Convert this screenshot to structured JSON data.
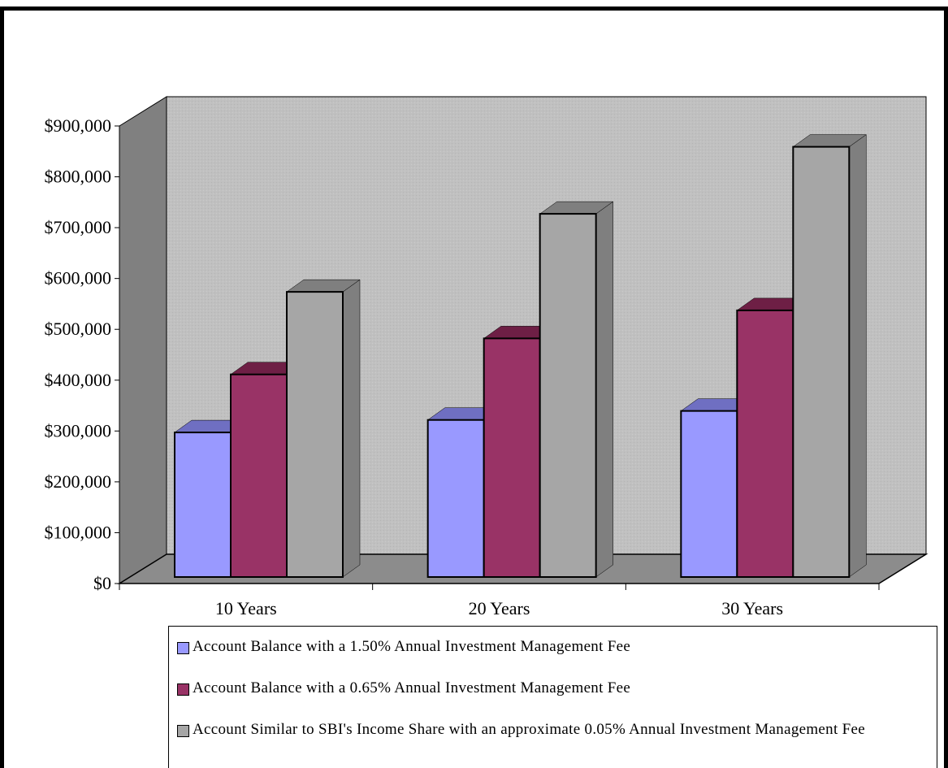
{
  "chart_data": {
    "type": "bar",
    "style": "3d-clustered-column",
    "categories": [
      "10 Years",
      "20 Years",
      "30 Years"
    ],
    "series": [
      {
        "name": "Account Balance with a 1.50% Annual Investment Management Fee",
        "color": "#9999ff",
        "top_color": "#6f6fc2",
        "values": [
          289000,
          314000,
          332000
        ]
      },
      {
        "name": "Account Balance with a 0.65% Annual Investment Management Fee",
        "color": "#993366",
        "top_color": "#6e1f45",
        "values": [
          405000,
          477000,
          533000
        ]
      },
      {
        "name": "Account Similar to SBI's Income Share with an approximate 0.05% Annual Investment Management Fee",
        "color": "#a6a6a6",
        "top_color": "#7f7f7f",
        "values": [
          570000,
          726000,
          860000
        ]
      }
    ],
    "y_tick_labels": [
      "$0",
      "$100,000",
      "$200,000",
      "$300,000",
      "$400,000",
      "$500,000",
      "$600,000",
      "$700,000",
      "$800,000",
      "$900,000"
    ],
    "ylim": [
      0,
      900000
    ],
    "grid": false,
    "legend_position": "bottom",
    "colors": {
      "wall": "#c0c0c0",
      "side_wall": "#808080",
      "floor": "#8c8c8c"
    }
  }
}
